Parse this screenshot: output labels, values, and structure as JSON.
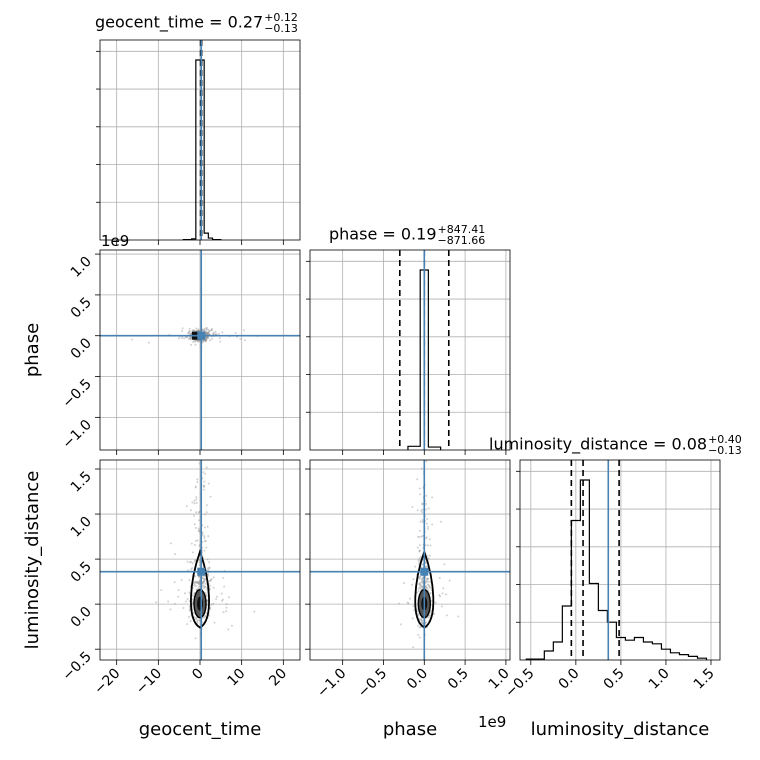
{
  "chart_data": {
    "type": "corner",
    "parameters": [
      "geocent_time",
      "phase",
      "luminosity_distance"
    ],
    "axis_labels": {
      "geocent_time": "geocent_time",
      "phase": "phase",
      "luminosity_distance": "luminosity_distance"
    },
    "titles": [
      {
        "param": "geocent_time",
        "name": "geocent_time",
        "median": "0.27",
        "plus": "+0.12",
        "minus": "−0.13"
      },
      {
        "param": "phase",
        "name": "phase",
        "median": "0.19",
        "plus": "+847.41",
        "minus": "−871.66"
      },
      {
        "param": "luminosity_distance",
        "name": "luminosity_distance",
        "median": "0.08",
        "plus": "+0.40",
        "minus": "−0.13"
      }
    ],
    "offset_labels": {
      "phase_y": "1e9",
      "phase_x": "1e9"
    },
    "ranges": {
      "geocent_time": [
        -24,
        24
      ],
      "phase": [
        -1400000000.0,
        1050000000.0
      ],
      "luminosity_distance": [
        -0.62,
        1.6
      ]
    },
    "ticks": {
      "geocent_time": {
        "values": [
          -20,
          -10,
          0,
          10,
          20
        ],
        "labels": [
          "−20",
          "−10",
          "0",
          "10",
          "20"
        ]
      },
      "phase": {
        "values": [
          -1000000000.0,
          -500000000.0,
          0,
          500000000.0,
          1000000000.0
        ],
        "labels": [
          "−1.0",
          "−0.5",
          "0.0",
          "0.5",
          "1.0"
        ]
      },
      "luminosity_distance": {
        "values": [
          -0.5,
          0,
          0.5,
          1.0,
          1.5
        ],
        "labels": [
          "−0.5",
          "0.0",
          "0.5",
          "1.0",
          "1.5"
        ]
      }
    },
    "truths": {
      "geocent_time": 0.3,
      "phase": 0,
      "luminosity_distance": 0.36
    },
    "quantile_lines": {
      "geocent_time": [
        0.14,
        0.27,
        0.39
      ],
      "phase": [
        -300000000.0,
        0.0,
        300000000.0
      ],
      "luminosity_distance": [
        -0.05,
        0.08,
        0.48
      ]
    },
    "histograms": {
      "geocent_time": {
        "edges": [
          -4,
          -2,
          -1,
          0,
          1,
          2,
          3,
          5
        ],
        "counts": [
          1,
          3,
          470,
          470,
          18,
          5,
          1
        ]
      },
      "phase": {
        "edges": [
          -200000000.0,
          -50000000.0,
          50000000.0,
          200000000.0
        ],
        "counts": [
          10,
          490,
          8
        ]
      },
      "luminosity_distance": {
        "edges": [
          -0.55,
          -0.45,
          -0.35,
          -0.25,
          -0.15,
          -0.05,
          0.05,
          0.15,
          0.25,
          0.35,
          0.45,
          0.55,
          0.65,
          0.75,
          0.85,
          0.95,
          1.05,
          1.15,
          1.25,
          1.35,
          1.45
        ],
        "counts": [
          1,
          1,
          10,
          20,
          60,
          155,
          200,
          85,
          55,
          42,
          25,
          22,
          25,
          20,
          18,
          12,
          8,
          6,
          4,
          2
        ]
      }
    },
    "grid": true,
    "colors": {
      "truth": "#4682b4",
      "hist": "#000000",
      "grid": "#b0b0b0",
      "scatter": "#9a9a9a"
    }
  }
}
